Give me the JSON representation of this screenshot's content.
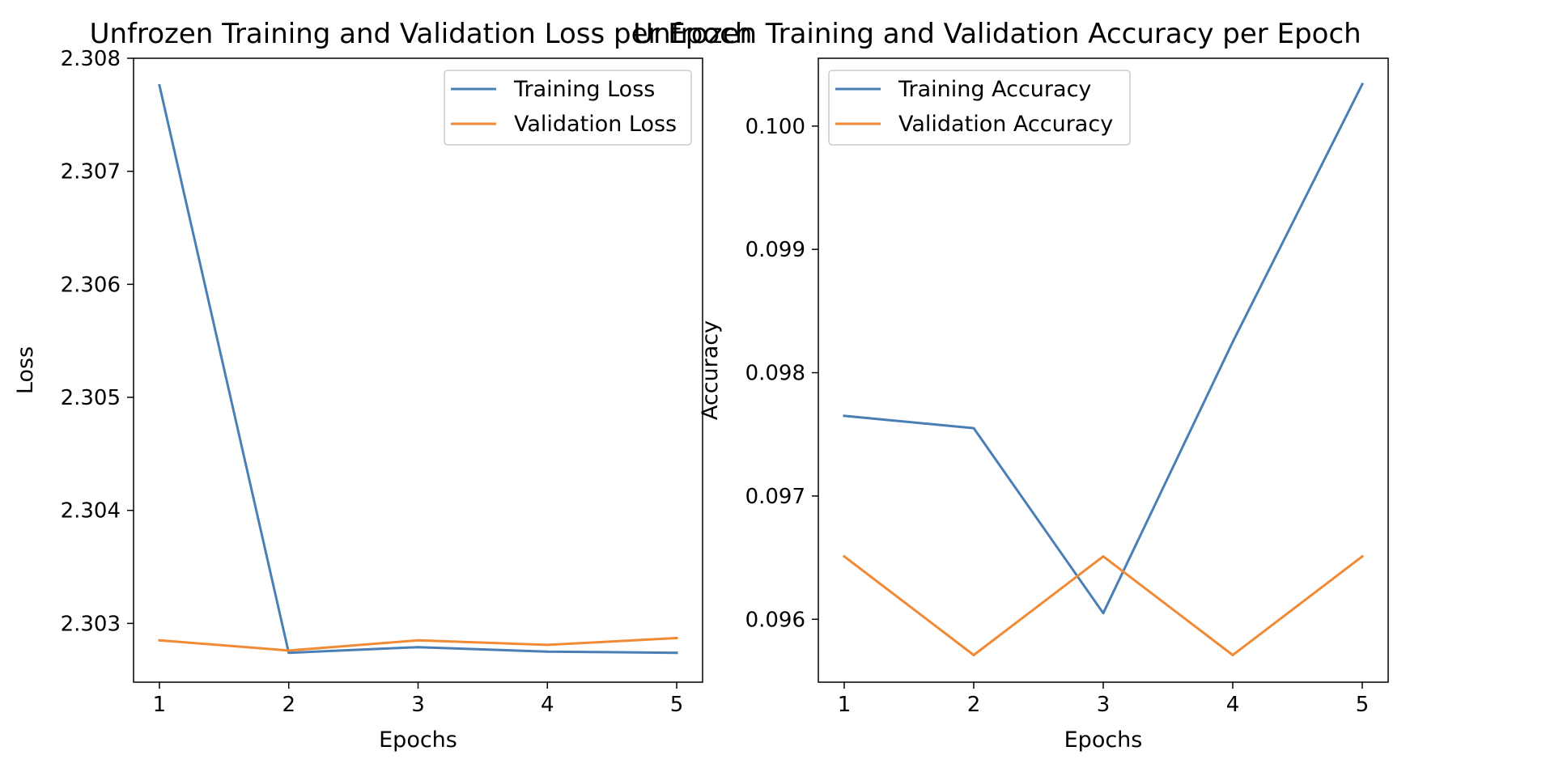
{
  "colors": {
    "series_1": "#4a7fb5",
    "series_2": "#f08a35",
    "axes": "#000000",
    "legend_border": "#cccccc"
  },
  "chart_data": [
    {
      "type": "line",
      "title": "Unfrozen Training and Validation Loss per Epoch",
      "xlabel": "Epochs",
      "ylabel": "Loss",
      "x": [
        1,
        2,
        3,
        4,
        5
      ],
      "xticks": [
        "1",
        "2",
        "3",
        "4",
        "5"
      ],
      "xlim": [
        0.8,
        5.2
      ],
      "yticks": [
        "2.303",
        "2.304",
        "2.305",
        "2.306",
        "2.307",
        "2.308"
      ],
      "ylim": [
        2.30248,
        2.308
      ],
      "legend": "top-right",
      "grid": false,
      "series": [
        {
          "name": "Training Loss",
          "color": "#4a7fb5",
          "values": [
            2.30776,
            2.30274,
            2.30279,
            2.30275,
            2.30274
          ]
        },
        {
          "name": "Validation Loss",
          "color": "#f08a35",
          "values": [
            2.30285,
            2.30276,
            2.30285,
            2.30281,
            2.30287
          ]
        }
      ]
    },
    {
      "type": "line",
      "title": "Unfrozen Training and Validation Accuracy per Epoch",
      "xlabel": "Epochs",
      "ylabel": "Accuracy",
      "x": [
        1,
        2,
        3,
        4,
        5
      ],
      "xticks": [
        "1",
        "2",
        "3",
        "4",
        "5"
      ],
      "xlim": [
        0.8,
        5.2
      ],
      "yticks": [
        "0.096",
        "0.097",
        "0.098",
        "0.099",
        "0.100"
      ],
      "ylim": [
        0.09549,
        0.10055
      ],
      "legend": "top-left",
      "grid": false,
      "series": [
        {
          "name": "Training Accuracy",
          "color": "#4a7fb5",
          "values": [
            0.09765,
            0.09755,
            0.09605,
            0.09825,
            0.10034
          ]
        },
        {
          "name": "Validation Accuracy",
          "color": "#f08a35",
          "values": [
            0.09651,
            0.09571,
            0.09651,
            0.09571,
            0.09651
          ]
        }
      ]
    }
  ]
}
